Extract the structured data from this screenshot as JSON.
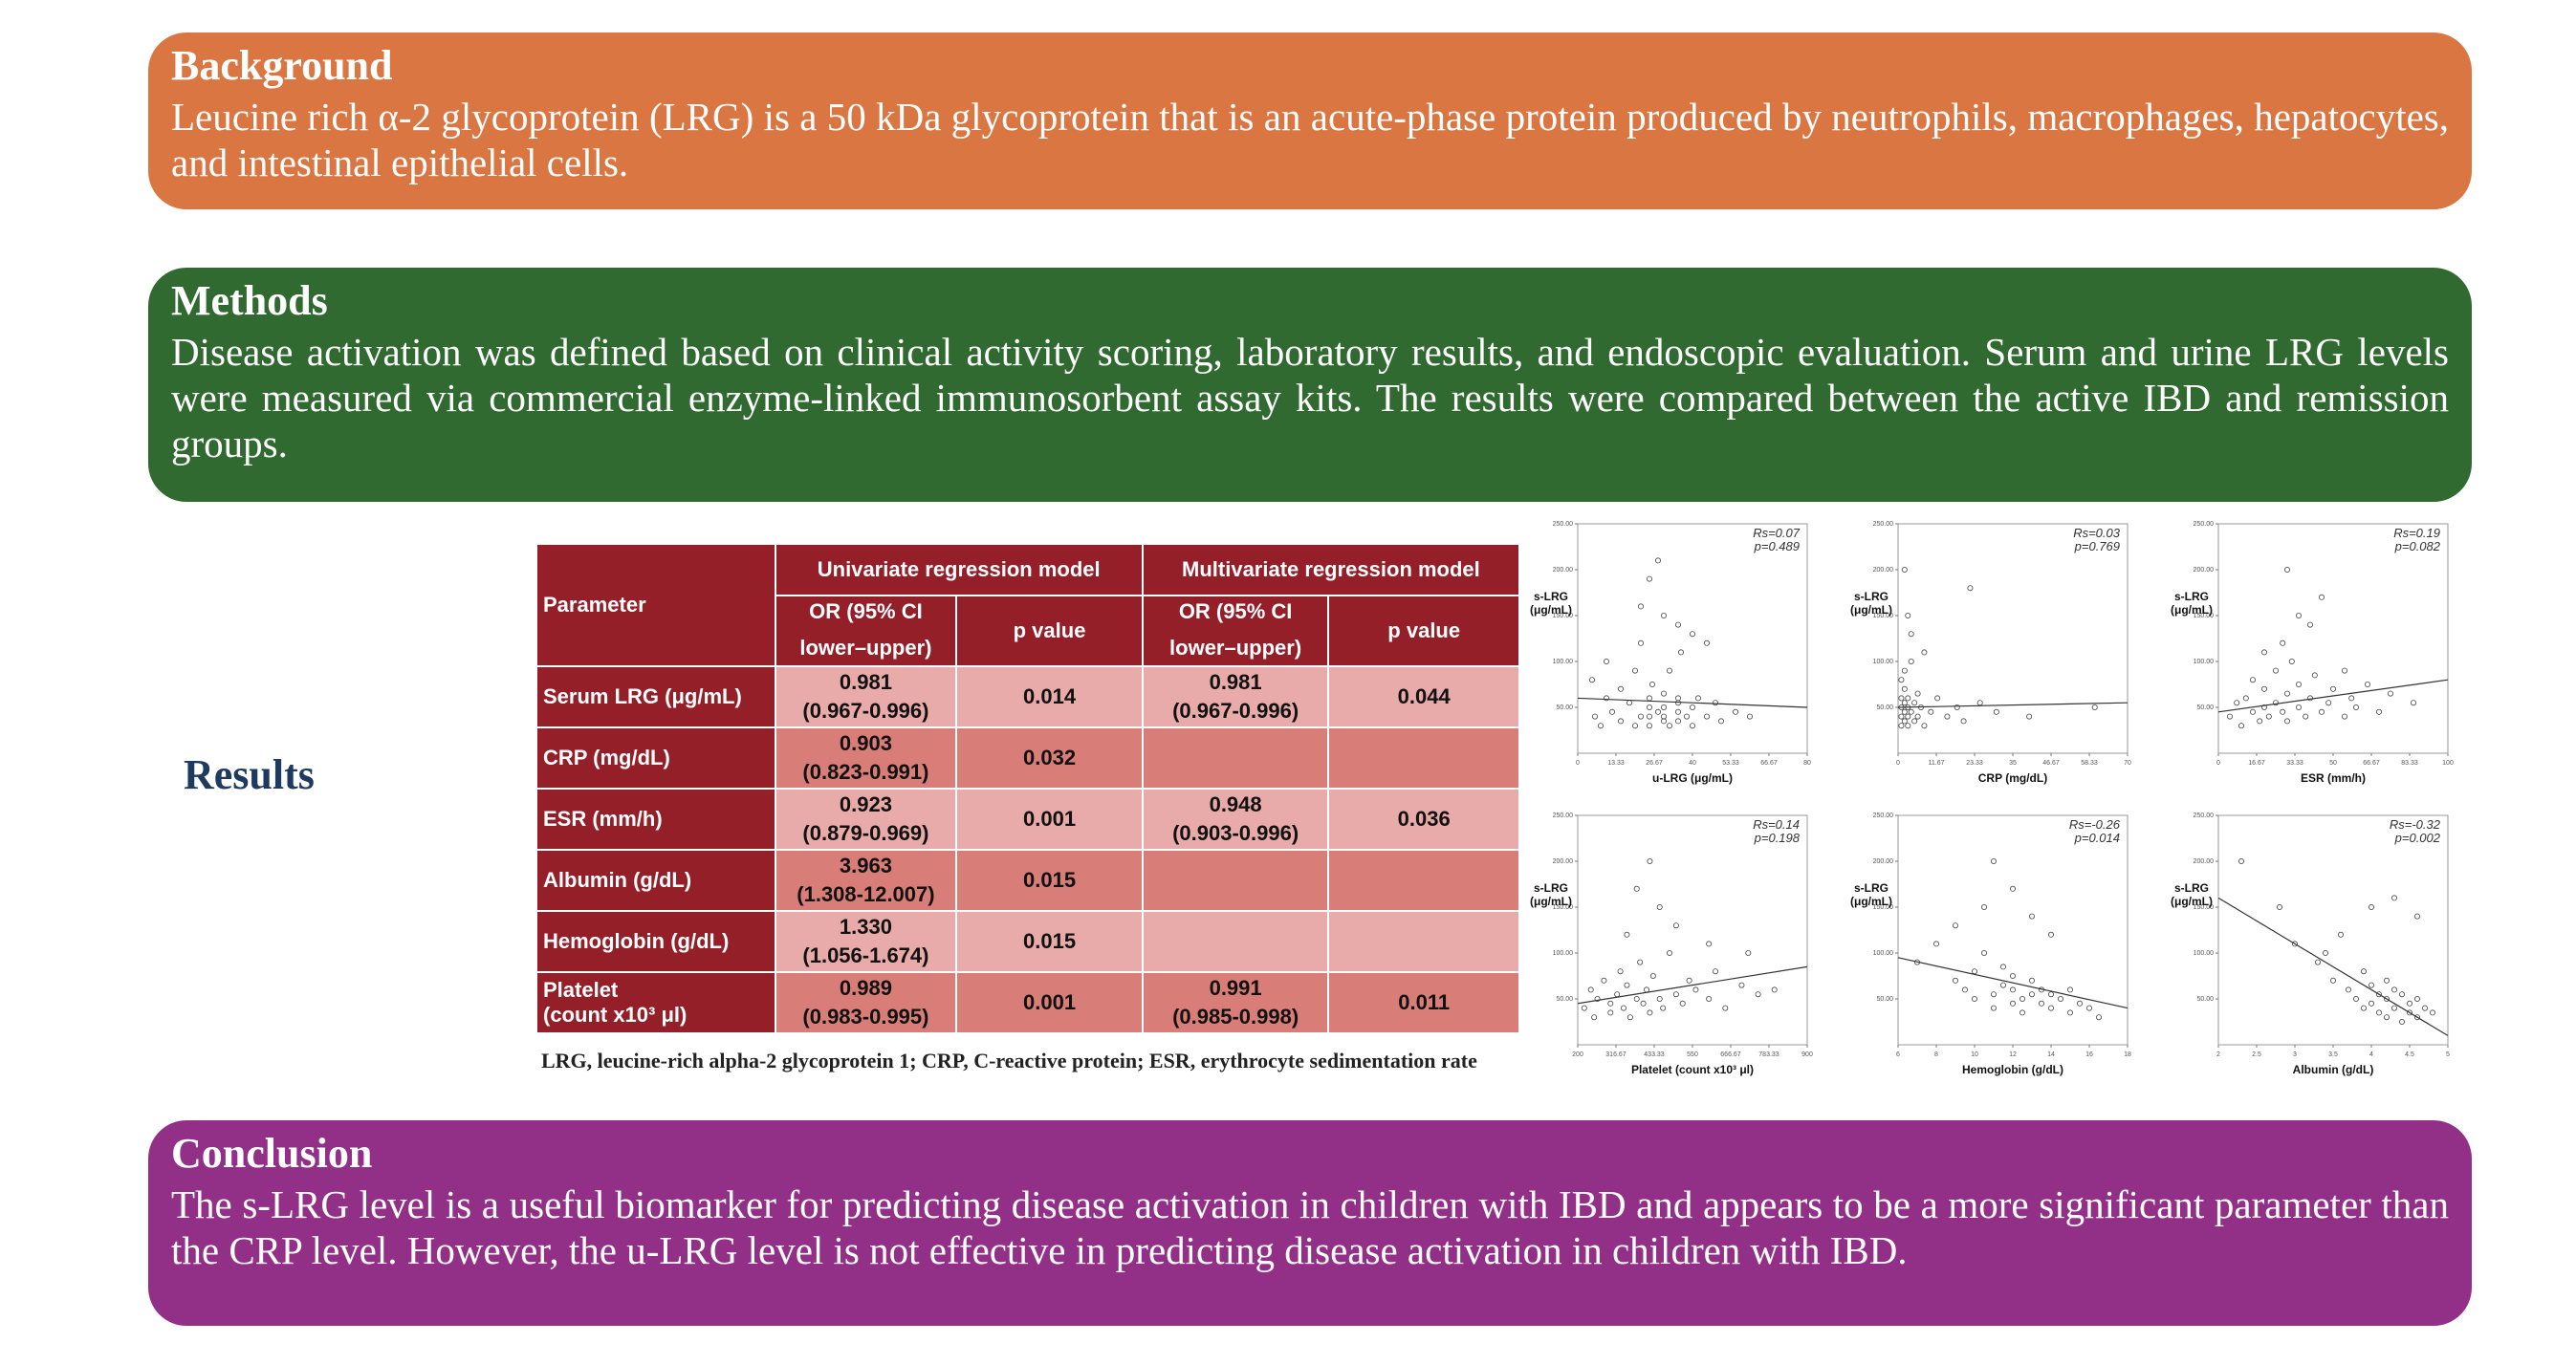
{
  "background": {
    "title": "Background",
    "text": "Leucine rich α-2 glycoprotein (LRG) is a 50 kDa glycoprotein that is an acute-phase protein produced by neutrophils, macrophages, hepatocytes, and intestinal epithelial cells."
  },
  "methods": {
    "title": "Methods",
    "text": "Disease activation was defined based on clinical activity scoring, laboratory results, and endoscopic evaluation. Serum and urine LRG levels were measured via commercial enzyme-linked immunosorbent assay kits. The results were compared between the active IBD and remission groups."
  },
  "results": {
    "title": "Results",
    "table": {
      "header_parameter": "Parameter",
      "header_uni": "Univariate regression model",
      "header_multi": "Multivariate regression model",
      "header_or_line1": "OR (95% CI",
      "header_or_line2": "lower–upper)",
      "header_p": "p value",
      "rows": [
        {
          "param": "Serum LRG (μg/mL)",
          "uni_or": "0.981",
          "uni_ci": "(0.967-0.996)",
          "uni_p": "0.014",
          "multi_or": "0.981",
          "multi_ci": "(0.967-0.996)",
          "multi_p": "0.044"
        },
        {
          "param": "CRP (mg/dL)",
          "uni_or": "0.903",
          "uni_ci": "(0.823-0.991)",
          "uni_p": "0.032",
          "multi_or": "",
          "multi_ci": "",
          "multi_p": ""
        },
        {
          "param": "ESR (mm/h)",
          "uni_or": "0.923",
          "uni_ci": "(0.879-0.969)",
          "uni_p": "0.001",
          "multi_or": "0.948",
          "multi_ci": "(0.903-0.996)",
          "multi_p": "0.036"
        },
        {
          "param": "Albumin (g/dL)",
          "uni_or": "3.963",
          "uni_ci": "(1.308-12.007)",
          "uni_p": "0.015",
          "multi_or": "",
          "multi_ci": "",
          "multi_p": ""
        },
        {
          "param": "Hemoglobin (g/dL)",
          "uni_or": "1.330",
          "uni_ci": "(1.056-1.674)",
          "uni_p": "0.015",
          "multi_or": "",
          "multi_ci": "",
          "multi_p": ""
        },
        {
          "param_line1": "Platelet",
          "param_line2": "(count x10³ μl)",
          "uni_or": "0.989",
          "uni_ci": "(0.983-0.995)",
          "uni_p": "0.001",
          "multi_or": "0.991",
          "multi_ci": "(0.985-0.998)",
          "multi_p": "0.011"
        }
      ],
      "footnote": "LRG, leucine-rich alpha-2 glycoprotein 1; CRP, C-reactive protein; ESR, erythrocyte sedimentation rate"
    }
  },
  "chart_data": [
    {
      "type": "scatter",
      "xlabel": "u-LRG (μg/mL)",
      "ylabel": "s-LRG (μg/mL)",
      "rs": "Rs=0.07",
      "p": "p=0.489",
      "xlim": [
        0,
        80
      ],
      "ylim": [
        0,
        250
      ],
      "trend": [
        [
          0,
          60
        ],
        [
          80,
          50
        ]
      ],
      "points": [
        [
          5,
          80
        ],
        [
          6,
          40
        ],
        [
          8,
          30
        ],
        [
          10,
          60
        ],
        [
          10,
          100
        ],
        [
          12,
          45
        ],
        [
          15,
          35
        ],
        [
          15,
          70
        ],
        [
          18,
          55
        ],
        [
          20,
          90
        ],
        [
          20,
          30
        ],
        [
          22,
          40
        ],
        [
          22,
          120
        ],
        [
          25,
          60
        ],
        [
          25,
          50
        ],
        [
          25,
          40
        ],
        [
          25,
          30
        ],
        [
          26,
          75
        ],
        [
          28,
          45
        ],
        [
          30,
          35
        ],
        [
          30,
          65
        ],
        [
          30,
          50
        ],
        [
          30,
          40
        ],
        [
          32,
          90
        ],
        [
          32,
          30
        ],
        [
          35,
          55
        ],
        [
          35,
          45
        ],
        [
          35,
          60
        ],
        [
          35,
          35
        ],
        [
          36,
          110
        ],
        [
          38,
          40
        ],
        [
          40,
          50
        ],
        [
          40,
          30
        ],
        [
          42,
          60
        ],
        [
          45,
          40
        ],
        [
          48,
          55
        ],
        [
          50,
          35
        ],
        [
          55,
          45
        ],
        [
          60,
          40
        ],
        [
          25,
          190
        ],
        [
          28,
          210
        ],
        [
          30,
          150
        ],
        [
          22,
          160
        ],
        [
          35,
          140
        ],
        [
          40,
          130
        ],
        [
          45,
          120
        ]
      ]
    },
    {
      "type": "scatter",
      "xlabel": "CRP (mg/dL)",
      "ylabel": "s-LRG (μg/mL)",
      "rs": "Rs=0.03",
      "p": "p=0.769",
      "xlim": [
        0,
        70
      ],
      "ylim": [
        0,
        250
      ],
      "trend": [
        [
          0,
          50
        ],
        [
          70,
          55
        ]
      ],
      "points": [
        [
          1,
          40
        ],
        [
          1,
          60
        ],
        [
          1,
          80
        ],
        [
          1,
          30
        ],
        [
          1,
          50
        ],
        [
          2,
          45
        ],
        [
          2,
          70
        ],
        [
          2,
          35
        ],
        [
          2,
          55
        ],
        [
          2,
          90
        ],
        [
          3,
          40
        ],
        [
          3,
          60
        ],
        [
          3,
          30
        ],
        [
          3,
          50
        ],
        [
          4,
          45
        ],
        [
          4,
          100
        ],
        [
          5,
          35
        ],
        [
          5,
          55
        ],
        [
          6,
          40
        ],
        [
          6,
          65
        ],
        [
          7,
          50
        ],
        [
          8,
          30
        ],
        [
          10,
          45
        ],
        [
          12,
          60
        ],
        [
          15,
          40
        ],
        [
          18,
          50
        ],
        [
          20,
          35
        ],
        [
          25,
          55
        ],
        [
          30,
          45
        ],
        [
          40,
          40
        ],
        [
          60,
          50
        ],
        [
          2,
          200
        ],
        [
          3,
          150
        ],
        [
          4,
          130
        ],
        [
          22,
          180
        ],
        [
          8,
          110
        ]
      ]
    },
    {
      "type": "scatter",
      "xlabel": "ESR (mm/h)",
      "ylabel": "s-LRG (μg/mL)",
      "rs": "Rs=0.19",
      "p": "p=0.082",
      "xlim": [
        0,
        100
      ],
      "ylim": [
        0,
        250
      ],
      "trend": [
        [
          0,
          45
        ],
        [
          100,
          80
        ]
      ],
      "points": [
        [
          5,
          40
        ],
        [
          8,
          55
        ],
        [
          10,
          30
        ],
        [
          12,
          60
        ],
        [
          15,
          45
        ],
        [
          15,
          80
        ],
        [
          18,
          35
        ],
        [
          20,
          50
        ],
        [
          20,
          70
        ],
        [
          22,
          40
        ],
        [
          25,
          90
        ],
        [
          25,
          55
        ],
        [
          28,
          45
        ],
        [
          30,
          65
        ],
        [
          30,
          35
        ],
        [
          32,
          100
        ],
        [
          35,
          50
        ],
        [
          35,
          75
        ],
        [
          38,
          40
        ],
        [
          40,
          60
        ],
        [
          42,
          85
        ],
        [
          45,
          45
        ],
        [
          48,
          55
        ],
        [
          50,
          70
        ],
        [
          55,
          40
        ],
        [
          58,
          60
        ],
        [
          60,
          50
        ],
        [
          65,
          75
        ],
        [
          70,
          45
        ],
        [
          75,
          65
        ],
        [
          85,
          55
        ],
        [
          30,
          200
        ],
        [
          35,
          150
        ],
        [
          40,
          140
        ],
        [
          45,
          170
        ],
        [
          28,
          120
        ],
        [
          20,
          110
        ],
        [
          55,
          90
        ]
      ]
    },
    {
      "type": "scatter",
      "xlabel": "Platelet (count x10³ μl)",
      "ylabel": "s-LRG (μg/mL)",
      "rs": "Rs=0.14",
      "p": "p=0.198",
      "xlim": [
        200,
        900
      ],
      "ylim": [
        0,
        250
      ],
      "trend": [
        [
          200,
          45
        ],
        [
          900,
          85
        ]
      ],
      "points": [
        [
          220,
          40
        ],
        [
          240,
          60
        ],
        [
          250,
          30
        ],
        [
          260,
          50
        ],
        [
          280,
          70
        ],
        [
          300,
          45
        ],
        [
          300,
          35
        ],
        [
          320,
          55
        ],
        [
          330,
          80
        ],
        [
          340,
          40
        ],
        [
          350,
          65
        ],
        [
          360,
          30
        ],
        [
          380,
          50
        ],
        [
          390,
          90
        ],
        [
          400,
          45
        ],
        [
          410,
          60
        ],
        [
          420,
          35
        ],
        [
          430,
          75
        ],
        [
          450,
          50
        ],
        [
          460,
          40
        ],
        [
          480,
          100
        ],
        [
          500,
          55
        ],
        [
          520,
          45
        ],
        [
          540,
          70
        ],
        [
          560,
          60
        ],
        [
          600,
          50
        ],
        [
          620,
          80
        ],
        [
          650,
          40
        ],
        [
          700,
          65
        ],
        [
          750,
          55
        ],
        [
          800,
          60
        ],
        [
          420,
          200
        ],
        [
          450,
          150
        ],
        [
          380,
          170
        ],
        [
          500,
          130
        ],
        [
          350,
          120
        ],
        [
          600,
          110
        ],
        [
          720,
          100
        ]
      ]
    },
    {
      "type": "scatter",
      "xlabel": "Hemoglobin (g/dL)",
      "ylabel": "s-LRG (μg/mL)",
      "rs": "Rs=-0.26",
      "p": "p=0.014",
      "xlim": [
        6,
        18
      ],
      "ylim": [
        0,
        250
      ],
      "trend": [
        [
          6,
          95
        ],
        [
          18,
          40
        ]
      ],
      "points": [
        [
          7,
          90
        ],
        [
          8,
          110
        ],
        [
          9,
          70
        ],
        [
          9.5,
          60
        ],
        [
          10,
          80
        ],
        [
          10,
          50
        ],
        [
          10.5,
          100
        ],
        [
          11,
          55
        ],
        [
          11,
          40
        ],
        [
          11.5,
          65
        ],
        [
          11.5,
          85
        ],
        [
          12,
          45
        ],
        [
          12,
          60
        ],
        [
          12,
          75
        ],
        [
          12.5,
          50
        ],
        [
          12.5,
          35
        ],
        [
          13,
          55
        ],
        [
          13,
          70
        ],
        [
          13.5,
          45
        ],
        [
          13.5,
          60
        ],
        [
          14,
          40
        ],
        [
          14,
          55
        ],
        [
          14.5,
          50
        ],
        [
          15,
          35
        ],
        [
          15,
          60
        ],
        [
          15.5,
          45
        ],
        [
          16,
          40
        ],
        [
          16.5,
          30
        ],
        [
          11,
          200
        ],
        [
          12,
          170
        ],
        [
          10.5,
          150
        ],
        [
          13,
          140
        ],
        [
          9,
          130
        ],
        [
          14,
          120
        ]
      ]
    },
    {
      "type": "scatter",
      "xlabel": "Albumin (g/dL)",
      "ylabel": "s-LRG (μg/mL)",
      "rs": "Rs=-0.32",
      "p": "p=0.002",
      "xlim": [
        2,
        5
      ],
      "ylim": [
        0,
        250
      ],
      "trend": [
        [
          2,
          160
        ],
        [
          5,
          10
        ]
      ],
      "points": [
        [
          2.3,
          200
        ],
        [
          2.8,
          150
        ],
        [
          3.0,
          110
        ],
        [
          3.3,
          90
        ],
        [
          3.5,
          70
        ],
        [
          3.6,
          120
        ],
        [
          3.7,
          60
        ],
        [
          3.8,
          50
        ],
        [
          3.9,
          80
        ],
        [
          3.9,
          40
        ],
        [
          4.0,
          65
        ],
        [
          4.0,
          45
        ],
        [
          4.1,
          55
        ],
        [
          4.1,
          35
        ],
        [
          4.2,
          70
        ],
        [
          4.2,
          50
        ],
        [
          4.2,
          30
        ],
        [
          4.3,
          60
        ],
        [
          4.3,
          40
        ],
        [
          4.4,
          55
        ],
        [
          4.4,
          25
        ],
        [
          4.5,
          45
        ],
        [
          4.5,
          35
        ],
        [
          4.6,
          50
        ],
        [
          4.6,
          30
        ],
        [
          4.7,
          40
        ],
        [
          4.8,
          35
        ],
        [
          4.3,
          160
        ],
        [
          4.0,
          150
        ],
        [
          4.6,
          140
        ],
        [
          3.4,
          100
        ]
      ]
    }
  ],
  "conclusion": {
    "title": "Conclusion",
    "text": "The s-LRG level is a useful biomarker for predicting disease activation in children with IBD and appears to be a more significant parameter than the CRP level. However, the u-LRG level is not effective in predicting disease activation in children with IBD."
  }
}
